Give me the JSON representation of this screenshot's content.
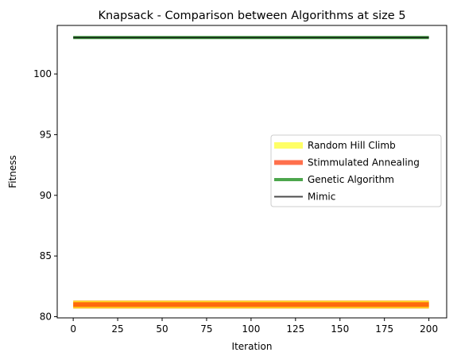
{
  "chart_data": {
    "type": "line",
    "title": "Knapsack - Comparison between Algorithms at size 5",
    "xlabel": "Iteration",
    "ylabel": "Fitness",
    "xlim": [
      -9,
      210
    ],
    "ylim": [
      79.9,
      104.0
    ],
    "xticks": [
      0,
      25,
      50,
      75,
      100,
      125,
      150,
      175,
      200
    ],
    "yticks": [
      80,
      85,
      90,
      95,
      100
    ],
    "grid": false,
    "legend_position": "center-right",
    "series": [
      {
        "name": "Random Hill Climb",
        "color": "#ffff33",
        "alpha": 0.75,
        "linewidth": 8,
        "x": [
          0,
          200
        ],
        "y": [
          81,
          81
        ],
        "border": "#ffa500"
      },
      {
        "name": "Stimmulated Annealing",
        "color": "#ff3300",
        "alpha": 0.7,
        "linewidth": 6,
        "x": [
          0,
          200
        ],
        "y": [
          81,
          81
        ]
      },
      {
        "name": "Genetic Algorithm",
        "color": "#008000",
        "alpha": 0.7,
        "linewidth": 4,
        "x": [
          0,
          200
        ],
        "y": [
          103,
          103
        ]
      },
      {
        "name": "Mimic",
        "color": "#000000",
        "alpha": 0.7,
        "linewidth": 2,
        "x": [
          0,
          200
        ],
        "y": [
          103,
          103
        ]
      }
    ]
  }
}
